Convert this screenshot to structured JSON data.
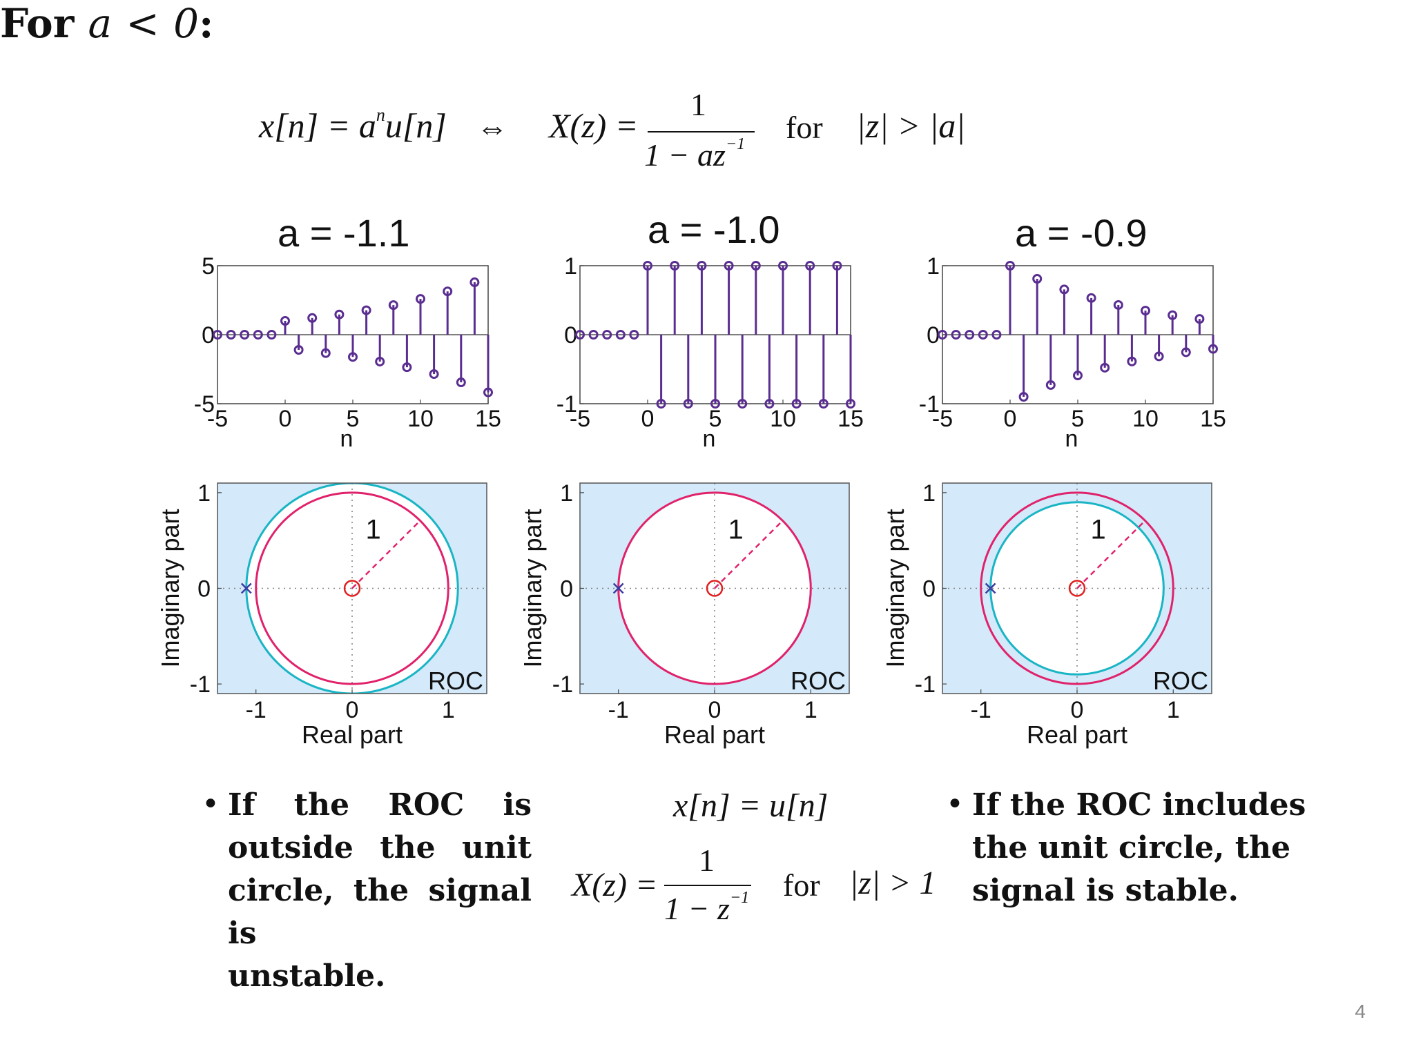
{
  "header": {
    "for_label": "For",
    "a_sym": "a",
    "cond": "< 0:",
    "zero": "0",
    "lhs": "x[n] = a",
    "lhs_sup": "n",
    "lhs_tail": "u[n]",
    "iff": "⇔",
    "xz": "X(z) =",
    "num": "1",
    "den": "1 − az",
    "den_sup": "−1",
    "for_word": "for",
    "region": "|z| > |a|"
  },
  "panels": [
    {
      "title": "a = -1.1",
      "a": -1.1
    },
    {
      "title": "a = -1.0",
      "a": -1.0
    },
    {
      "title": "a = -0.9",
      "a": -0.9
    }
  ],
  "chart_data": [
    {
      "type": "stem",
      "title": "a = -1.1",
      "xlabel": "n",
      "xlim": [
        -5,
        15
      ],
      "ylim": [
        -5,
        5
      ],
      "xticks": [
        "-5",
        "0",
        "5",
        "10",
        "15"
      ],
      "yticks": [
        "5",
        "0",
        "-5"
      ],
      "formula": "x[n] = a^n u[n], a = -1.1",
      "n": [
        -5,
        -4,
        -3,
        -2,
        -1,
        0,
        1,
        2,
        3,
        4,
        5,
        6,
        7,
        8,
        9,
        10,
        11,
        12,
        13,
        14,
        15
      ]
    },
    {
      "type": "stem",
      "title": "a = -1.0",
      "xlabel": "n",
      "xlim": [
        -5,
        15
      ],
      "ylim": [
        -1,
        1
      ],
      "xticks": [
        "-5",
        "0",
        "5",
        "10",
        "15"
      ],
      "yticks": [
        "1",
        "0",
        "-1"
      ],
      "formula": "x[n] = a^n u[n], a = -1.0",
      "n": [
        -5,
        -4,
        -3,
        -2,
        -1,
        0,
        1,
        2,
        3,
        4,
        5,
        6,
        7,
        8,
        9,
        10,
        11,
        12,
        13,
        14,
        15
      ]
    },
    {
      "type": "stem",
      "title": "a = -0.9",
      "xlabel": "n",
      "xlim": [
        -5,
        15
      ],
      "ylim": [
        -1,
        1
      ],
      "xticks": [
        "-5",
        "0",
        "5",
        "10",
        "15"
      ],
      "yticks": [
        "1",
        "0",
        "-1"
      ],
      "formula": "x[n] = a^n u[n], a = -0.9",
      "n": [
        -5,
        -4,
        -3,
        -2,
        -1,
        0,
        1,
        2,
        3,
        4,
        5,
        6,
        7,
        8,
        9,
        10,
        11,
        12,
        13,
        14,
        15
      ]
    },
    {
      "type": "pole-zero",
      "xlabel": "Real part",
      "ylabel": "Imaginary part",
      "xlim": [
        -1.4,
        1.4
      ],
      "ylim": [
        -1.1,
        1.1
      ],
      "xticks": [
        "-1",
        "0",
        "1"
      ],
      "yticks": [
        "1",
        "0",
        "-1"
      ],
      "pole": [
        -1.1,
        0
      ],
      "zero": [
        0,
        0
      ],
      "roc_radius": 1.1,
      "unit_circle_label": "1",
      "roc_label": "ROC"
    },
    {
      "type": "pole-zero",
      "xlabel": "Real part",
      "ylabel": "Imaginary part",
      "xlim": [
        -1.4,
        1.4
      ],
      "ylim": [
        -1.1,
        1.1
      ],
      "xticks": [
        "-1",
        "0",
        "1"
      ],
      "yticks": [
        "1",
        "0",
        "-1"
      ],
      "pole": [
        -1.0,
        0
      ],
      "zero": [
        0,
        0
      ],
      "roc_radius": 1.0,
      "unit_circle_label": "1",
      "roc_label": "ROC"
    },
    {
      "type": "pole-zero",
      "xlabel": "Real part",
      "ylabel": "Imaginary part",
      "xlim": [
        -1.4,
        1.4
      ],
      "ylim": [
        -1.1,
        1.1
      ],
      "xticks": [
        "-1",
        "0",
        "1"
      ],
      "yticks": [
        "1",
        "0",
        "-1"
      ],
      "pole": [
        -0.9,
        0
      ],
      "zero": [
        0,
        0
      ],
      "roc_radius": 0.9,
      "unit_circle_label": "1",
      "roc_label": "ROC"
    }
  ],
  "bottom": {
    "bullet_left": "If the ROC is outside the unit circle, the signal is unstable.",
    "bullet_left_lines": [
      "If the ROC is",
      "outside the unit",
      "circle, the signal is",
      "unstable."
    ],
    "mid_eq1": "x[n] = u[n]",
    "mid_xz": "X(z) =",
    "mid_num": "1",
    "mid_den": "1 − z",
    "mid_den_sup": "−1",
    "mid_for": "for",
    "mid_region": "|z| > 1",
    "bullet_right_lines": [
      "If the ROC includes",
      "the unit circle, the",
      "signal is stable."
    ],
    "bullet_symbol": "•"
  },
  "colors": {
    "stem": "#5a2d91",
    "roc_fill": "#d4e9f9",
    "unit_circle": "#e0226b",
    "roc_circle": "#19b5c4",
    "pole": "#3a3aa0",
    "zero": "#e02020",
    "grid": "#7f7f7f"
  },
  "page_number": "4"
}
